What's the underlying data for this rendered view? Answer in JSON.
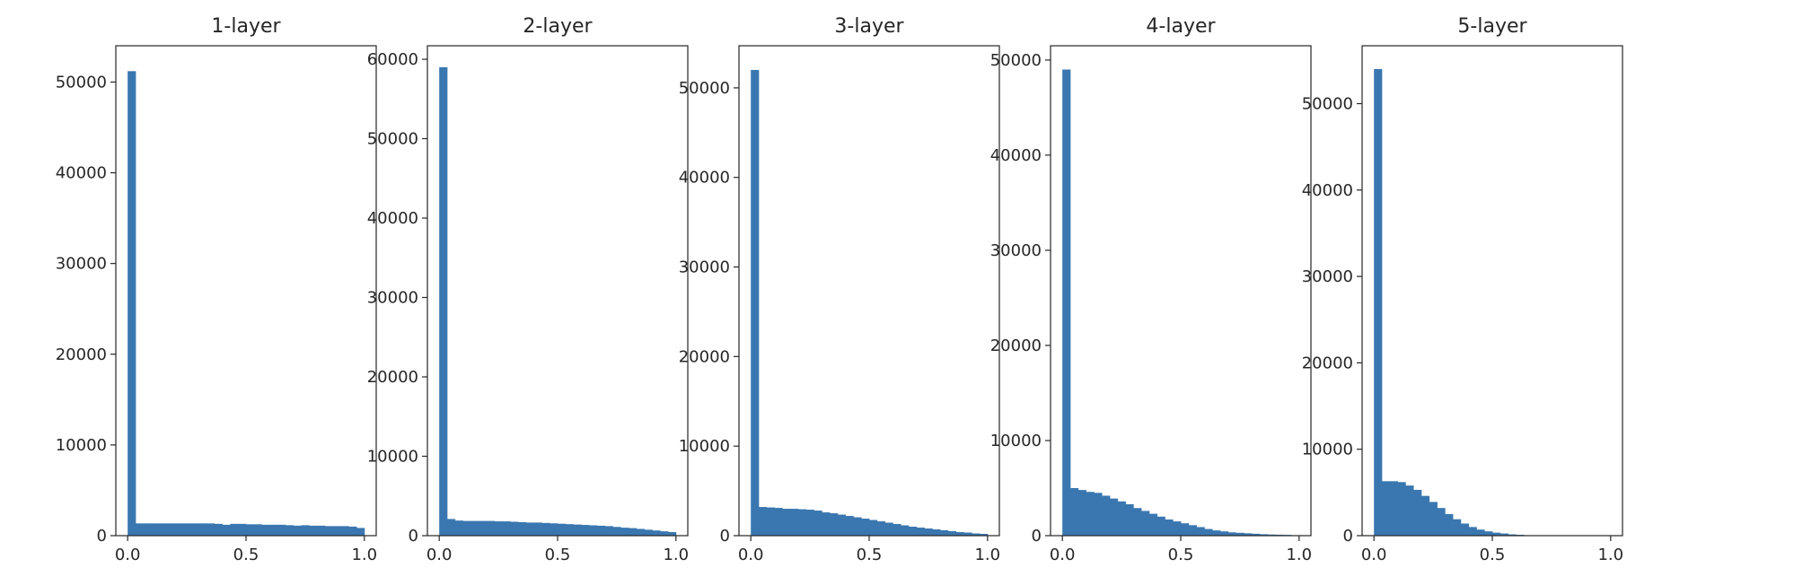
{
  "chart_data": [
    {
      "type": "bar",
      "title": "1-layer",
      "x_ticks": [
        "0.0",
        "0.5",
        "1.0"
      ],
      "y_ticks": [
        "0",
        "10000",
        "20000",
        "30000",
        "40000",
        "50000"
      ],
      "xlim": [
        -0.05,
        1.05
      ],
      "ylim": [
        0,
        54000
      ],
      "bin_edges": [
        0.0,
        0.0333,
        0.0667,
        0.1,
        0.1333,
        0.1667,
        0.2,
        0.2333,
        0.2667,
        0.3,
        0.3333,
        0.3667,
        0.4,
        0.4333,
        0.4667,
        0.5,
        0.5333,
        0.5667,
        0.6,
        0.6333,
        0.6667,
        0.7,
        0.7333,
        0.7667,
        0.8,
        0.8333,
        0.8667,
        0.9,
        0.9333,
        0.9667,
        1.0
      ],
      "counts": [
        51200,
        1350,
        1350,
        1350,
        1350,
        1350,
        1350,
        1350,
        1350,
        1350,
        1350,
        1300,
        1200,
        1300,
        1300,
        1250,
        1250,
        1200,
        1200,
        1200,
        1150,
        1100,
        1150,
        1100,
        1100,
        1050,
        1050,
        1050,
        1000,
        850
      ]
    },
    {
      "type": "bar",
      "title": "2-layer",
      "x_ticks": [
        "0.0",
        "0.5",
        "1.0"
      ],
      "y_ticks": [
        "0",
        "10000",
        "20000",
        "30000",
        "40000",
        "50000",
        "60000"
      ],
      "xlim": [
        -0.05,
        1.05
      ],
      "ylim": [
        0,
        61700
      ],
      "bin_edges": [
        0.0,
        0.0333,
        0.0667,
        0.1,
        0.1333,
        0.1667,
        0.2,
        0.2333,
        0.2667,
        0.3,
        0.3333,
        0.3667,
        0.4,
        0.4333,
        0.4667,
        0.5,
        0.5333,
        0.5667,
        0.6,
        0.6333,
        0.6667,
        0.7,
        0.7333,
        0.7667,
        0.8,
        0.8333,
        0.8667,
        0.9,
        0.9333,
        0.9667,
        1.0
      ],
      "counts": [
        59000,
        2100,
        1900,
        1850,
        1850,
        1850,
        1850,
        1800,
        1800,
        1750,
        1700,
        1650,
        1650,
        1600,
        1550,
        1500,
        1450,
        1400,
        1350,
        1300,
        1250,
        1200,
        1100,
        1000,
        950,
        850,
        750,
        650,
        550,
        450
      ]
    },
    {
      "type": "bar",
      "title": "3-layer",
      "x_ticks": [
        "0.0",
        "0.5",
        "1.0"
      ],
      "y_ticks": [
        "0",
        "10000",
        "20000",
        "30000",
        "40000",
        "50000"
      ],
      "xlim": [
        -0.05,
        1.05
      ],
      "ylim": [
        0,
        54700
      ],
      "bin_edges": [
        0.0,
        0.0333,
        0.0667,
        0.1,
        0.1333,
        0.1667,
        0.2,
        0.2333,
        0.2667,
        0.3,
        0.3333,
        0.3667,
        0.4,
        0.4333,
        0.4667,
        0.5,
        0.5333,
        0.5667,
        0.6,
        0.6333,
        0.6667,
        0.7,
        0.7333,
        0.7667,
        0.8,
        0.8333,
        0.8667,
        0.9,
        0.9333,
        0.9667,
        1.0
      ],
      "counts": [
        52000,
        3200,
        3150,
        3100,
        3000,
        3000,
        2950,
        2900,
        2800,
        2600,
        2500,
        2350,
        2200,
        2050,
        1900,
        1750,
        1600,
        1450,
        1300,
        1150,
        1000,
        900,
        800,
        700,
        600,
        500,
        400,
        350,
        250,
        200
      ]
    },
    {
      "type": "bar",
      "title": "4-layer",
      "x_ticks": [
        "0.0",
        "0.5",
        "1.0"
      ],
      "y_ticks": [
        "0",
        "10000",
        "20000",
        "30000",
        "40000",
        "50000"
      ],
      "xlim": [
        -0.05,
        1.05
      ],
      "ylim": [
        0,
        51500
      ],
      "bin_edges": [
        0.0,
        0.0333,
        0.0667,
        0.1,
        0.1333,
        0.1667,
        0.2,
        0.2333,
        0.2667,
        0.3,
        0.3333,
        0.3667,
        0.4,
        0.4333,
        0.4667,
        0.5,
        0.5333,
        0.5667,
        0.6,
        0.6333,
        0.6667,
        0.7,
        0.7333,
        0.7667,
        0.8,
        0.8333,
        0.8667,
        0.9,
        0.9333,
        0.9667
      ],
      "counts": [
        49000,
        5000,
        4800,
        4600,
        4500,
        4200,
        3900,
        3600,
        3300,
        2900,
        2600,
        2300,
        2000,
        1700,
        1500,
        1300,
        1100,
        900,
        700,
        550,
        450,
        350,
        300,
        250,
        200,
        150,
        120,
        100,
        80
      ]
    },
    {
      "type": "bar",
      "title": "5-layer",
      "x_ticks": [
        "0.0",
        "0.5",
        "1.0"
      ],
      "y_ticks": [
        "0",
        "10000",
        "20000",
        "30000",
        "40000",
        "50000"
      ],
      "xlim": [
        -0.05,
        1.05
      ],
      "ylim": [
        0,
        56700
      ],
      "bin_edges": [
        0.0,
        0.0333,
        0.0667,
        0.1,
        0.1333,
        0.1667,
        0.2,
        0.2333,
        0.2667,
        0.3,
        0.3333,
        0.3667,
        0.4,
        0.4333,
        0.4667,
        0.5,
        0.5333,
        0.5667,
        0.6,
        0.6333
      ],
      "counts": [
        54000,
        6300,
        6300,
        6200,
        5800,
        5300,
        4600,
        3900,
        3200,
        2500,
        1900,
        1400,
        1000,
        700,
        500,
        350,
        250,
        150,
        100
      ]
    }
  ],
  "colors": {
    "bar": "#3a77b0",
    "axis": "#262626",
    "text": "#262626"
  }
}
